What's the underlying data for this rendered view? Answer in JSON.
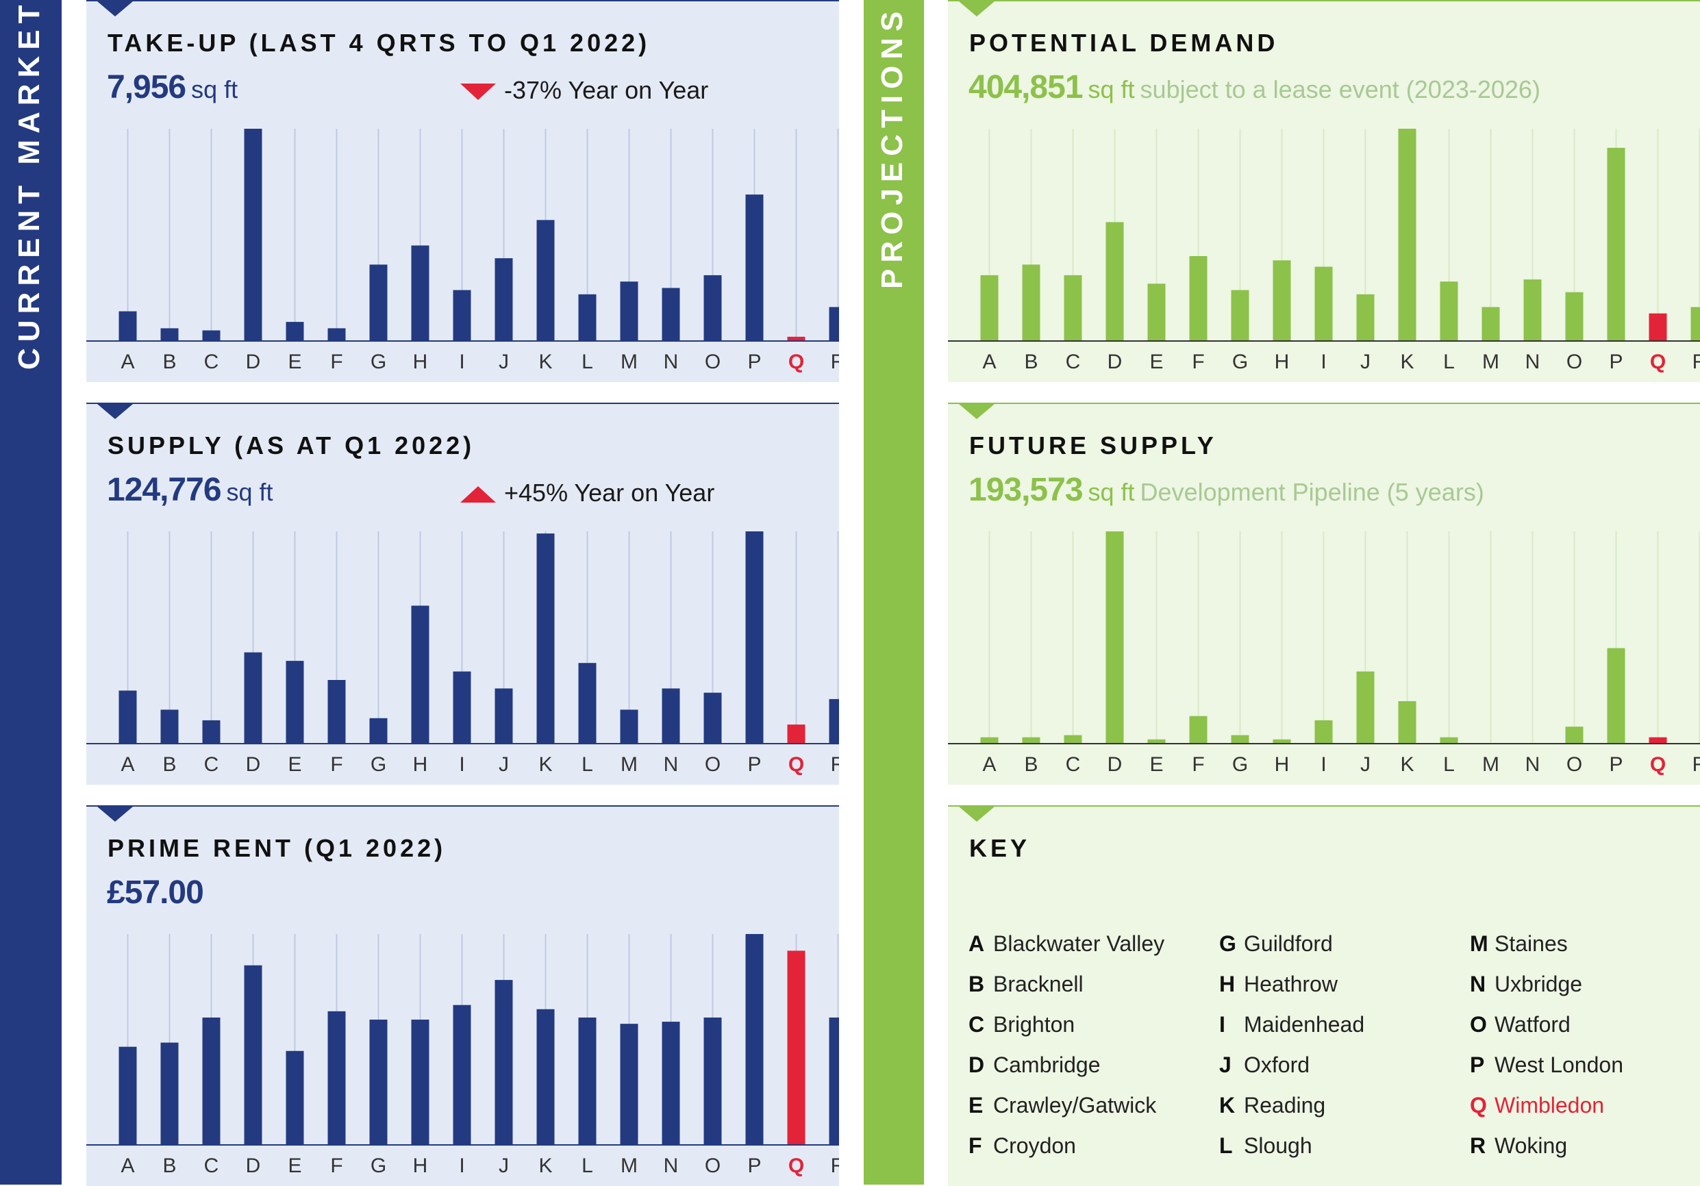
{
  "sidebars": {
    "left": "CURRENT MARKET",
    "right": "PROJECTIONS"
  },
  "colors": {
    "navy": "#233a80",
    "green": "#8cc14a",
    "highlight": "#e32338"
  },
  "icons": {
    "down": "red-down-triangle",
    "up": "red-up-triangle"
  },
  "categories": [
    "A",
    "B",
    "C",
    "D",
    "E",
    "F",
    "G",
    "H",
    "I",
    "J",
    "K",
    "L",
    "M",
    "N",
    "O",
    "P",
    "Q",
    "R"
  ],
  "highlight_category": "Q",
  "panels": {
    "takeup": {
      "title": "TAKE-UP (LAST 4 QRTS TO Q1 2022)",
      "value": "7,956",
      "unit": "sq ft",
      "yoy": "-37% Year on Year"
    },
    "supply": {
      "title": "SUPPLY (AS AT Q1 2022)",
      "value": "124,776",
      "unit": "sq ft",
      "yoy": "+45% Year on Year"
    },
    "rent": {
      "title": "PRIME RENT (Q1 2022)",
      "value": "£57.00"
    },
    "demand": {
      "title": "POTENTIAL DEMAND",
      "value": "404,851",
      "unit": "sq ft",
      "desc": "subject to a lease event (2023-2026)"
    },
    "future": {
      "title": "FUTURE SUPPLY",
      "value": "193,573",
      "unit": "sq ft",
      "desc": "Development Pipeline (5 years)"
    },
    "key": {
      "title": "KEY"
    }
  },
  "key": [
    {
      "letter": "A",
      "name": "Blackwater Valley"
    },
    {
      "letter": "B",
      "name": "Bracknell"
    },
    {
      "letter": "C",
      "name": "Brighton"
    },
    {
      "letter": "D",
      "name": "Cambridge"
    },
    {
      "letter": "E",
      "name": "Crawley/Gatwick"
    },
    {
      "letter": "F",
      "name": "Croydon"
    },
    {
      "letter": "G",
      "name": "Guildford"
    },
    {
      "letter": "H",
      "name": "Heathrow"
    },
    {
      "letter": "I",
      "name": "Maidenhead"
    },
    {
      "letter": "J",
      "name": "Oxford"
    },
    {
      "letter": "K",
      "name": "Reading"
    },
    {
      "letter": "L",
      "name": "Slough"
    },
    {
      "letter": "M",
      "name": "Staines"
    },
    {
      "letter": "N",
      "name": "Uxbridge"
    },
    {
      "letter": "O",
      "name": "Watford"
    },
    {
      "letter": "P",
      "name": "West London"
    },
    {
      "letter": "Q",
      "name": "Wimbledon"
    },
    {
      "letter": "R",
      "name": "Woking"
    }
  ],
  "chart_data": [
    {
      "id": "takeup",
      "type": "bar",
      "title": "TAKE-UP (LAST 4 QRTS TO Q1 2022)",
      "categories": [
        "A",
        "B",
        "C",
        "D",
        "E",
        "F",
        "G",
        "H",
        "I",
        "J",
        "K",
        "L",
        "M",
        "N",
        "O",
        "P",
        "Q",
        "R"
      ],
      "values": [
        14,
        6,
        5,
        100,
        9,
        6,
        36,
        45,
        24,
        39,
        57,
        22,
        28,
        25,
        31,
        69,
        2,
        16
      ],
      "ylim": [
        0,
        100
      ],
      "grid": true
    },
    {
      "id": "supply",
      "type": "bar",
      "title": "SUPPLY (AS AT Q1 2022)",
      "categories": [
        "A",
        "B",
        "C",
        "D",
        "E",
        "F",
        "G",
        "H",
        "I",
        "J",
        "K",
        "L",
        "M",
        "N",
        "O",
        "P",
        "Q",
        "R"
      ],
      "values": [
        25,
        16,
        11,
        43,
        39,
        30,
        12,
        65,
        34,
        26,
        99,
        38,
        16,
        26,
        24,
        100,
        9,
        21
      ],
      "ylim": [
        0,
        100
      ],
      "grid": true
    },
    {
      "id": "rent",
      "type": "bar",
      "title": "PRIME RENT (Q1 2022)",
      "categories": [
        "A",
        "B",
        "C",
        "D",
        "E",
        "F",
        "G",
        "H",
        "I",
        "J",
        "K",
        "L",
        "M",
        "N",
        "O",
        "P",
        "Q",
        "R"
      ],
      "values": [
        47,
        49,
        61,
        86,
        45,
        64,
        60,
        60,
        67,
        79,
        65,
        61,
        58,
        59,
        61,
        101,
        93,
        61
      ],
      "ylim": [
        0,
        101
      ],
      "grid": true
    },
    {
      "id": "demand",
      "type": "bar",
      "title": "POTENTIAL DEMAND",
      "categories": [
        "A",
        "B",
        "C",
        "D",
        "E",
        "F",
        "G",
        "H",
        "I",
        "J",
        "K",
        "L",
        "M",
        "N",
        "O",
        "P",
        "Q",
        "R"
      ],
      "values": [
        31,
        36,
        31,
        56,
        27,
        40,
        24,
        38,
        35,
        22,
        100,
        28,
        16,
        29,
        23,
        91,
        13,
        16
      ],
      "ylim": [
        0,
        100
      ],
      "grid": true
    },
    {
      "id": "future",
      "type": "bar",
      "title": "FUTURE SUPPLY",
      "categories": [
        "A",
        "B",
        "C",
        "D",
        "E",
        "F",
        "G",
        "H",
        "I",
        "J",
        "K",
        "L",
        "M",
        "N",
        "O",
        "P",
        "Q",
        "R"
      ],
      "values": [
        3,
        3,
        4,
        100,
        2,
        13,
        4,
        2,
        11,
        34,
        20,
        3,
        0,
        0,
        8,
        45,
        3,
        0
      ],
      "ylim": [
        0,
        100
      ],
      "grid": true
    }
  ]
}
